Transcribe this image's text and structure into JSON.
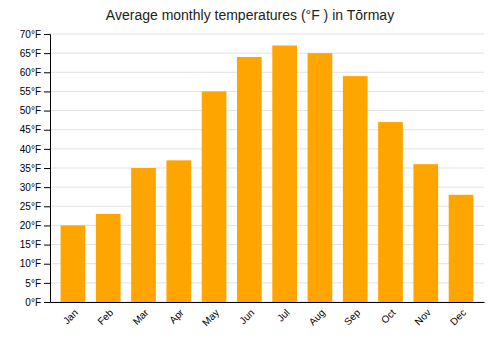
{
  "chart_data": {
    "type": "bar",
    "title": "Average monthly temperatures (°F ) in Tōrmay",
    "categories": [
      "Jan",
      "Feb",
      "Mar",
      "Apr",
      "May",
      "Jun",
      "Jul",
      "Aug",
      "Sep",
      "Oct",
      "Nov",
      "Dec"
    ],
    "values": [
      20,
      23,
      35,
      37,
      55,
      64,
      67,
      65,
      59,
      47,
      36,
      28
    ],
    "color": "#FFA500",
    "ylim": [
      0,
      70
    ],
    "yticks": [
      {
        "value": 0,
        "label": "0°F"
      },
      {
        "value": 5,
        "label": "5°F"
      },
      {
        "value": 10,
        "label": "10°F"
      },
      {
        "value": 15,
        "label": "15°F"
      },
      {
        "value": 20,
        "label": "20°F"
      },
      {
        "value": 25,
        "label": "25°F"
      },
      {
        "value": 30,
        "label": "30°F"
      },
      {
        "value": 35,
        "label": "35°F"
      },
      {
        "value": 40,
        "label": "40°F"
      },
      {
        "value": 45,
        "label": "45°F"
      },
      {
        "value": 50,
        "label": "50°F"
      },
      {
        "value": 55,
        "label": "55°F"
      },
      {
        "value": 60,
        "label": "60°F"
      },
      {
        "value": 65,
        "label": "65°F"
      },
      {
        "value": 70,
        "label": "70°F"
      }
    ],
    "grid": true
  }
}
